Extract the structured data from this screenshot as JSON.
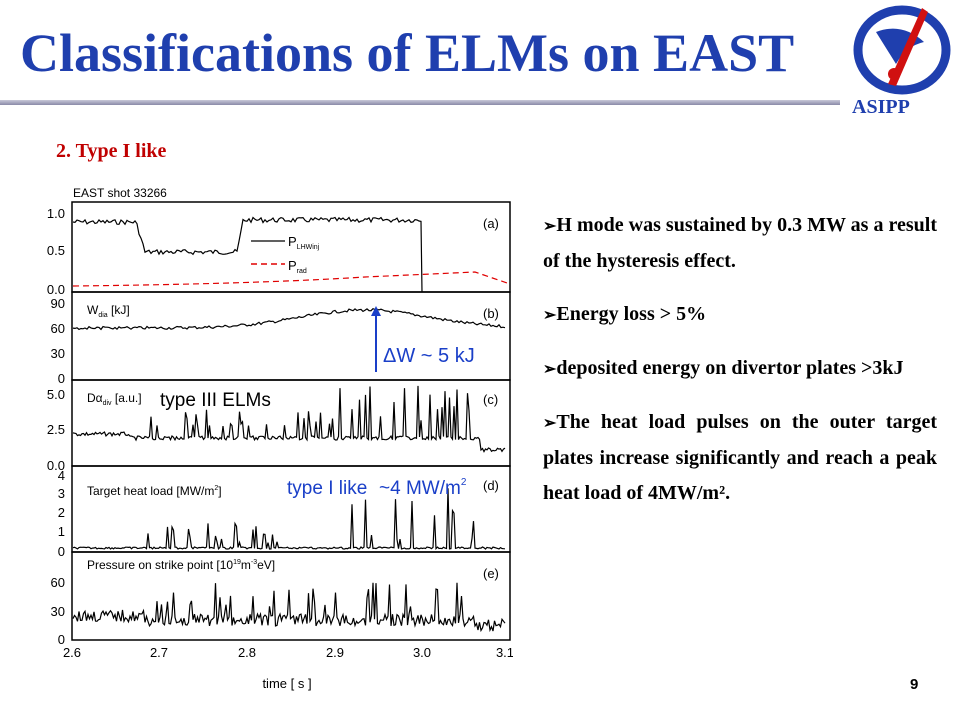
{
  "slide": {
    "title": "Classifications of ELMs on EAST",
    "logo_text": "ASIPP",
    "subheading": "2.  Type I like",
    "page_number": "9"
  },
  "bullets": [
    {
      "arrow": "➢",
      "text": "H mode was sustained by 0.3 MW as a result of the hysteresis effect."
    },
    {
      "arrow": "➢",
      "text": "Energy loss > 5%"
    },
    {
      "arrow": "➢",
      "text": "deposited energy on divertor plates >3kJ"
    },
    {
      "arrow": "➢",
      "text": "The heat load pulses on the outer target plates increase significantly and reach a peak heat load of 4MW/m²."
    }
  ],
  "figure": {
    "shot_label": "EAST shot 33266",
    "xlabel": "time  [ s ]",
    "xticks": [
      "2.6",
      "2.7",
      "2.8",
      "2.9",
      "3.0",
      "3.1"
    ],
    "panels": [
      {
        "letter": "(a)",
        "yticks": [
          "1.0",
          "0.5",
          "0.0"
        ],
        "legend": [
          "P",
          "LHWinj",
          "P",
          "rad"
        ]
      },
      {
        "letter": "(b)",
        "label": "W",
        "label_sub": "dia",
        "label_rest": " [kJ]",
        "yticks": [
          "90",
          "60",
          "30",
          "0"
        ],
        "annotation": "ΔW ~ 5 kJ"
      },
      {
        "letter": "(c)",
        "label": "Dα",
        "label_sub": "div",
        "label_rest": " [a.u.]",
        "yticks": [
          "5.0",
          "2.5",
          "0.0"
        ],
        "annotation": "type III ELMs"
      },
      {
        "letter": "(d)",
        "label": "Target heat load [MW/m",
        "label_sup": "2",
        "label_end": "]",
        "yticks": [
          "4",
          "3",
          "2",
          "1",
          "0"
        ],
        "annotation": "type I like",
        "annotation2": "~4 MW/m",
        "annotation2_sup": "2"
      },
      {
        "letter": "(e)",
        "label": "Pressure on strike point [10",
        "label_sup": "19",
        "label_mid": "m",
        "label_sup2": "-3",
        "label_end": "eV]",
        "yticks": [
          "60",
          "30",
          "0"
        ]
      }
    ],
    "colors": {
      "trace": "#000000",
      "prad": "#e00000",
      "annotation_blue": "#1a3fc8",
      "arrow_blue": "#1a3fc8"
    }
  }
}
